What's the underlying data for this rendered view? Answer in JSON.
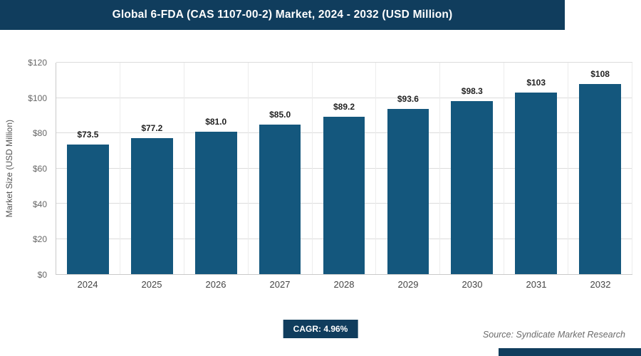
{
  "header": {
    "title": "Global 6-FDA (CAS 1107-00-2) Market, 2024 - 2032 (USD Million)"
  },
  "chart_data": {
    "type": "bar",
    "title": "Global 6-FDA (CAS 1107-00-2) Market, 2024 - 2032 (USD Million)",
    "categories": [
      "2024",
      "2025",
      "2026",
      "2027",
      "2028",
      "2029",
      "2030",
      "2031",
      "2032"
    ],
    "values": [
      73.5,
      77.2,
      81.0,
      85.0,
      89.2,
      93.6,
      98.3,
      103,
      108
    ],
    "value_labels": [
      "$73.5",
      "$77.2",
      "$81.0",
      "$85.0",
      "$89.2",
      "$93.6",
      "$98.3",
      "$103",
      "$108"
    ],
    "xlabel": "",
    "ylabel": "Market Size (USD Million)",
    "ylim": [
      0,
      120
    ],
    "yticks": [
      0,
      20,
      40,
      60,
      80,
      100,
      120
    ],
    "ytick_labels": [
      "$0",
      "$20",
      "$40",
      "$60",
      "$80",
      "$100",
      "$120"
    ],
    "grid": "horizontal",
    "legend": "none"
  },
  "footer": {
    "cagr_label": "CAGR: 4.96%",
    "source": "Source: Syndicate Market Research"
  },
  "colors": {
    "banner": "#103d5d",
    "bar": "#14577d",
    "grid": "#dcdcdc",
    "value_label": "#222222"
  }
}
